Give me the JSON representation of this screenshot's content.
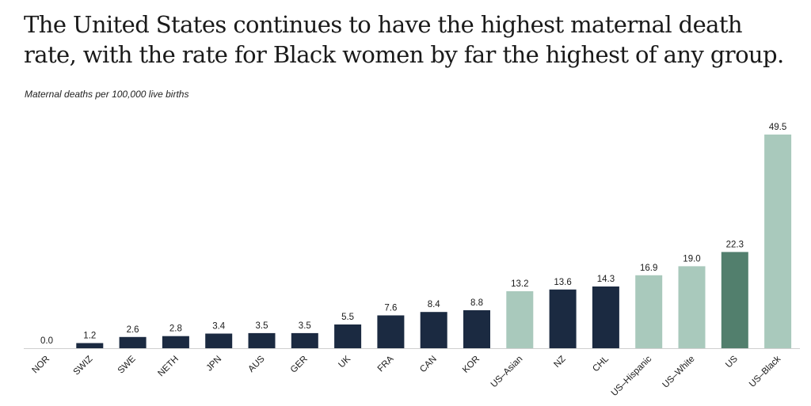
{
  "title": "The United States continues to have the highest maternal death rate, with the rate for Black women by far the highest of any group.",
  "chart_data": {
    "type": "bar",
    "ylabel": "Maternal deaths per 100,000 live births",
    "ylim": [
      0,
      49.5
    ],
    "grid": false,
    "categories": [
      "NOR",
      "SWIZ",
      "SWE",
      "NETH",
      "JPN",
      "AUS",
      "GER",
      "UK",
      "FRA",
      "CAN",
      "KOR",
      "US–Asian",
      "NZ",
      "CHL",
      "US–Hispanic",
      "US–White",
      "US",
      "US–Black"
    ],
    "values": [
      0.0,
      1.2,
      2.6,
      2.8,
      3.4,
      3.5,
      3.5,
      5.5,
      7.6,
      8.4,
      8.8,
      13.2,
      13.6,
      14.3,
      16.9,
      19.0,
      22.3,
      49.5
    ],
    "value_labels": [
      "0.0",
      "1.2",
      "2.6",
      "2.8",
      "3.4",
      "3.5",
      "3.5",
      "5.5",
      "7.6",
      "8.4",
      "8.8",
      "13.2",
      "13.6",
      "14.3",
      "16.9",
      "19.0",
      "22.3",
      "49.5"
    ],
    "bar_colors": [
      "#1b2a41",
      "#1b2a41",
      "#1b2a41",
      "#1b2a41",
      "#1b2a41",
      "#1b2a41",
      "#1b2a41",
      "#1b2a41",
      "#1b2a41",
      "#1b2a41",
      "#1b2a41",
      "#a9c9bc",
      "#1b2a41",
      "#1b2a41",
      "#a9c9bc",
      "#a9c9bc",
      "#527f6d",
      "#a9c9bc"
    ]
  }
}
